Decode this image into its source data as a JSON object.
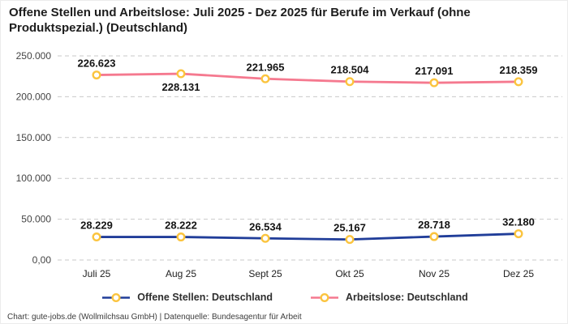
{
  "title": "Offene Stellen und Arbeitslose: Juli 2025 - Dez 2025 für Berufe im Verkauf (ohne Produktspezial.) (Deutschland)",
  "footer": "Chart: gute-jobs.de (Wollmilchsau GmbH) | Datenquelle: Bundesagentur für Arbeit",
  "colors": {
    "open_positions_line": "#203d99",
    "unemployed_line": "#f5798f",
    "marker_ring": "#fbc43e",
    "marker_fill": "#ffffff",
    "gridline": "#c9c9c9",
    "data_label": "#141414",
    "axis_label": "#444444"
  },
  "chart_data": {
    "type": "line",
    "title": "Offene Stellen und Arbeitslose: Juli 2025 - Dez 2025 für Berufe im Verkauf (ohne Produktspezial.) (Deutschland)",
    "categories": [
      "Juli 25",
      "Aug 25",
      "Sept 25",
      "Okt 25",
      "Nov 25",
      "Dez 25"
    ],
    "ylim": [
      0,
      250000
    ],
    "grid": "horizontal-dashed",
    "legend_position": "bottom",
    "y_ticks": [
      {
        "value": 0,
        "label": "0,00"
      },
      {
        "value": 50000,
        "label": "50.000"
      },
      {
        "value": 100000,
        "label": "100.000"
      },
      {
        "value": 150000,
        "label": "150.000"
      },
      {
        "value": 200000,
        "label": "200.000"
      },
      {
        "value": 250000,
        "label": "250.000"
      }
    ],
    "series": [
      {
        "name": "Offene Stellen: Deutschland",
        "color": "#203d99",
        "values": [
          28229,
          28222,
          26534,
          25167,
          28718,
          32180
        ],
        "labels": [
          "28.229",
          "28.222",
          "26.534",
          "25.167",
          "28.718",
          "32.180"
        ],
        "label_positions": [
          "above",
          "above",
          "above",
          "above",
          "above",
          "above"
        ]
      },
      {
        "name": "Arbeitslose: Deutschland",
        "color": "#f5798f",
        "values": [
          226623,
          228131,
          221965,
          218504,
          217091,
          218359
        ],
        "labels": [
          "226.623",
          "228.131",
          "221.965",
          "218.504",
          "217.091",
          "218.359"
        ],
        "label_positions": [
          "above",
          "below",
          "above",
          "above",
          "above",
          "above"
        ]
      }
    ]
  }
}
